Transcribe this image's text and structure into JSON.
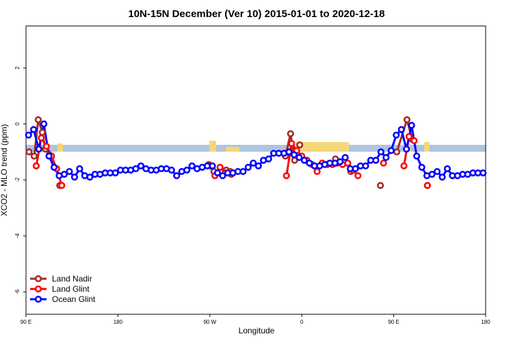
{
  "chart_data": {
    "type": "line",
    "title": "10N-15N December (Ver 10)   2015-01-01 to 2020-12-18",
    "x_label": "Longitude",
    "y_label": "XCO2 - MLO trend (ppm)",
    "xlim": [
      90,
      540
    ],
    "ylim": [
      -6.8,
      3.5
    ],
    "xticks": [
      {
        "value": 90,
        "label": "90 E"
      },
      180,
      {
        "value": 270,
        "label": "90 W"
      },
      {
        "value": 360,
        "label": "0"
      },
      {
        "value": 450,
        "label": "90 E"
      },
      {
        "value": 540,
        "label": "180"
      }
    ],
    "yticks": [
      2,
      0,
      -2,
      -4,
      -6
    ],
    "legend": "bottom-left",
    "series": [
      {
        "name": "Land Nadir",
        "color": "#a52a2a",
        "x": [
          93,
          98,
          102,
          106,
          109,
          113,
          null,
          123,
          null,
          269,
          274,
          null,
          286,
          291,
          null,
          344,
          349,
          353,
          358,
          null,
          393,
          null,
          408,
          null,
          437,
          null,
          453,
          463,
          468,
          null,
          483
        ],
        "values": [
          -1.0,
          -1.15,
          0.15,
          -0.3,
          -0.9,
          -1.1,
          null,
          -2.2,
          null,
          -1.45,
          -1.7,
          null,
          -1.65,
          -1.8,
          null,
          -1.15,
          -0.35,
          -1.3,
          -0.75,
          null,
          -1.25,
          null,
          -1.7,
          null,
          -2.2,
          null,
          -1.0,
          0.15,
          -0.55,
          null,
          -2.2
        ]
      },
      {
        "name": "Land Glint",
        "color": "#ff0000",
        "x": [
          100,
          105,
          110,
          115,
          120,
          125,
          null,
          270,
          275,
          280,
          285,
          290,
          null,
          345,
          350,
          355,
          360,
          365,
          370,
          375,
          380,
          385,
          390,
          395,
          400,
          405,
          410,
          415,
          null,
          440,
          null,
          460,
          465,
          470,
          null,
          483
        ],
        "values": [
          -1.5,
          -0.5,
          -0.8,
          -1.15,
          -1.6,
          -2.2,
          null,
          -1.5,
          -1.85,
          -1.55,
          -1.75,
          -1.7,
          null,
          -1.85,
          -0.7,
          -0.95,
          -1.15,
          -1.3,
          -1.45,
          -1.7,
          -1.4,
          -1.45,
          -1.45,
          -1.4,
          -1.45,
          -1.4,
          -1.65,
          -1.85,
          null,
          -1.4,
          null,
          -1.5,
          -0.45,
          -0.6,
          null,
          -2.2
        ]
      },
      {
        "name": "Ocean Glint",
        "color": "#0000ff",
        "x": [
          92.5,
          97.5,
          102.5,
          107.5,
          112.5,
          117.5,
          122.5,
          127.5,
          132.5,
          137.5,
          142.5,
          147.5,
          152.5,
          157.5,
          162.5,
          167.5,
          172.5,
          177.5,
          182.5,
          187.5,
          192.5,
          197.5,
          202.5,
          207.5,
          212.5,
          217.5,
          222.5,
          227.5,
          232.5,
          237.5,
          242.5,
          247.5,
          252.5,
          257.5,
          262.5,
          267.5,
          272.5,
          277.5,
          282.5,
          287.5,
          292.5,
          297.5,
          302.5,
          307.5,
          312.5,
          317.5,
          322.5,
          327.5,
          332.5,
          337.5,
          342.5,
          347.5,
          352.5,
          357.5,
          362.5,
          367.5,
          372.5,
          377.5,
          382.5,
          387.5,
          392.5,
          397.5,
          402.5,
          407.5,
          412.5,
          417.5,
          422.5,
          427.5,
          432.5,
          437.5,
          442.5,
          447.5,
          452.5,
          457.5,
          462.5,
          467.5,
          472.5,
          477.5,
          482.5,
          487.5,
          492.5,
          497.5,
          502.5,
          507.5,
          512.5,
          517.5,
          522.5,
          527.5,
          532.5,
          537.5
        ],
        "values": [
          -0.4,
          -0.2,
          -0.9,
          0.0,
          -1.15,
          -1.55,
          -1.85,
          -1.8,
          -1.7,
          -1.9,
          -1.6,
          -1.85,
          -1.9,
          -1.8,
          -1.8,
          -1.75,
          -1.75,
          -1.75,
          -1.65,
          -1.65,
          -1.65,
          -1.6,
          -1.5,
          -1.6,
          -1.65,
          -1.65,
          -1.6,
          -1.6,
          -1.65,
          -1.85,
          -1.7,
          -1.65,
          -1.5,
          -1.6,
          -1.55,
          -1.5,
          -1.5,
          -1.75,
          -1.85,
          -1.75,
          -1.75,
          -1.7,
          -1.7,
          -1.55,
          -1.4,
          -1.5,
          -1.3,
          -1.25,
          -1.05,
          -1.05,
          -1.05,
          -1.0,
          -1.1,
          -1.2,
          -1.3,
          -1.4,
          -1.5,
          -1.5,
          -1.45,
          -1.4,
          -1.4,
          -1.35,
          -1.2,
          -1.6,
          -1.6,
          -1.5,
          -1.5,
          -1.3,
          -1.3,
          -1.0,
          -1.2,
          -0.95,
          -0.4,
          -0.2,
          -0.9,
          -0.05,
          -1.15,
          -1.55,
          -1.85,
          -1.8,
          -1.7,
          -1.9,
          -1.6,
          -1.85,
          -1.85,
          -1.8,
          -1.8,
          -1.75,
          -1.75,
          -1.75
        ]
      }
    ]
  }
}
